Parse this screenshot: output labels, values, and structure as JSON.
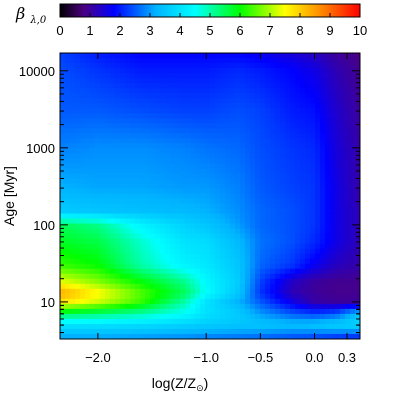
{
  "chart_data": {
    "type": "heatmap",
    "title": "",
    "xlabel": "log(Z/Z",
    "xlabel_suffix": ")",
    "xlabel_symbol": "sun-symbol",
    "ylabel": "Age [Myr]",
    "y_scale": "log",
    "xlim": [
      -2.35,
      0.42
    ],
    "ylim": [
      3.3,
      17000
    ],
    "x_ticks": [
      {
        "value": -2.0,
        "label": "−2.0"
      },
      {
        "value": -1.0,
        "label": "−1.0"
      },
      {
        "value": -0.5,
        "label": "−0.5"
      },
      {
        "value": 0.0,
        "label": "0.0"
      },
      {
        "value": 0.3,
        "label": "0.3"
      }
    ],
    "y_ticks": [
      {
        "value": 10,
        "label": "10"
      },
      {
        "value": 100,
        "label": "100"
      },
      {
        "value": 1000,
        "label": "1000"
      },
      {
        "value": 10000,
        "label": "10000"
      }
    ],
    "colorbar": {
      "title": "β",
      "title_sub": "λ,0",
      "range": [
        0,
        10
      ],
      "ticks": [
        "0",
        "1",
        "2",
        "3",
        "4",
        "5",
        "6",
        "7",
        "8",
        "9",
        "10"
      ],
      "colormap": "rainbow",
      "placement": "top"
    },
    "grid": false,
    "x_grid": [
      -2.35,
      -2.0,
      -1.6,
      -1.2,
      -1.0,
      -0.7,
      -0.5,
      -0.2,
      0.0,
      0.2,
      0.42
    ],
    "y_grid": [
      3.3,
      5,
      7,
      10,
      13,
      18,
      30,
      60,
      100,
      150,
      300,
      1000,
      3000,
      10000,
      17000
    ],
    "values": [
      [
        3.0,
        3.0,
        2.9,
        2.8,
        2.7,
        2.6,
        2.5,
        2.3,
        2.2,
        2.0,
        1.9
      ],
      [
        4.0,
        4.0,
        3.9,
        3.7,
        3.6,
        3.5,
        3.5,
        3.4,
        3.5,
        3.7,
        3.8
      ],
      [
        5.5,
        5.3,
        5.0,
        4.5,
        4.0,
        3.6,
        3.0,
        2.5,
        2.3,
        2.5,
        3.5
      ],
      [
        7.8,
        7.2,
        6.3,
        5.0,
        4.0,
        3.2,
        2.5,
        1.6,
        1.1,
        1.0,
        1.0
      ],
      [
        8.4,
        7.6,
        6.5,
        5.5,
        4.5,
        3.5,
        2.2,
        1.2,
        1.0,
        0.9,
        0.9
      ],
      [
        7.4,
        6.8,
        6.0,
        5.2,
        4.4,
        3.6,
        2.3,
        1.3,
        1.0,
        0.9,
        0.9
      ],
      [
        6.3,
        6.0,
        5.0,
        4.3,
        4.1,
        3.5,
        2.6,
        2.2,
        1.7,
        1.3,
        1.1
      ],
      [
        5.8,
        5.6,
        4.8,
        4.0,
        3.9,
        3.3,
        2.7,
        2.4,
        2.1,
        1.6,
        1.2
      ],
      [
        5.5,
        5.2,
        4.3,
        3.7,
        3.5,
        3.0,
        2.6,
        2.4,
        2.2,
        1.6,
        1.2
      ],
      [
        3.6,
        3.5,
        3.4,
        3.3,
        3.2,
        2.9,
        2.6,
        2.4,
        2.2,
        1.6,
        1.2
      ],
      [
        3.2,
        3.1,
        3.1,
        3.0,
        3.0,
        2.8,
        2.5,
        2.3,
        2.2,
        1.6,
        1.1
      ],
      [
        2.8,
        2.9,
        2.9,
        2.8,
        2.7,
        2.6,
        2.4,
        2.2,
        2.1,
        1.5,
        1.1
      ],
      [
        2.5,
        2.5,
        2.4,
        2.3,
        2.3,
        2.4,
        2.3,
        2.0,
        1.9,
        1.4,
        1.0
      ],
      [
        2.4,
        2.2,
        2.0,
        2.0,
        2.0,
        2.1,
        2.0,
        1.8,
        1.6,
        1.2,
        0.9
      ],
      [
        2.3,
        2.0,
        1.8,
        1.8,
        1.8,
        1.8,
        1.7,
        1.5,
        1.3,
        1.0,
        0.8
      ]
    ]
  }
}
